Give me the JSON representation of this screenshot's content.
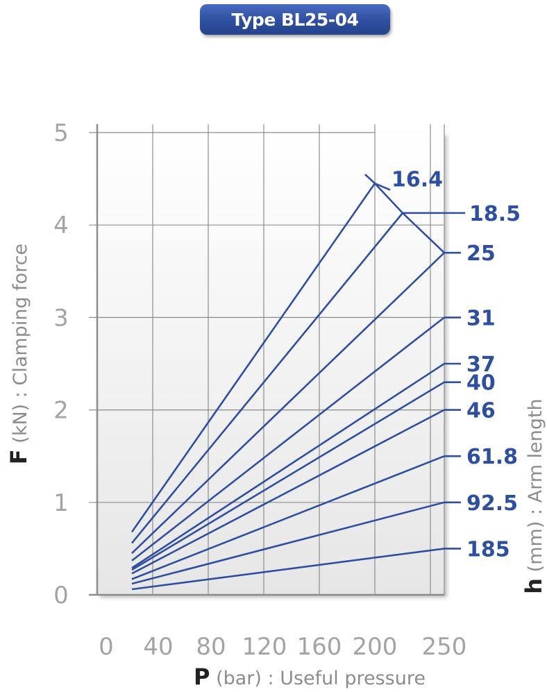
{
  "title": "Type BL25-04",
  "chart_data": {
    "type": "line",
    "xlabel": {
      "symbol": "P",
      "unit": "(bar)",
      "text": ": Useful pressure"
    },
    "ylabel": {
      "symbol": "F",
      "unit": "(kN)",
      "text": ": Clamping force"
    },
    "series_axis_label": {
      "symbol": "h",
      "unit": "(mm)",
      "text": ": Arm length"
    },
    "x_ticks": [
      "0",
      "40",
      "80",
      "120",
      "160",
      "200",
      "250"
    ],
    "y_ticks": [
      "0",
      "1",
      "2",
      "3",
      "4",
      "5"
    ],
    "xlim": [
      0,
      250
    ],
    "ylim": [
      0,
      5
    ],
    "grid": true,
    "colors": {
      "line": "#2e4f9f",
      "grid": "#8c8c8c",
      "tick": "#a3a3a3",
      "title_bg": "#2e4f9f"
    },
    "series": [
      {
        "label": "16.4",
        "x": [
          25,
          200
        ],
        "y": [
          0.68,
          4.45
        ],
        "callout": {
          "from": [
            200,
            4.45
          ],
          "to": [
            211,
            4.38
          ],
          "x": 211,
          "y": 4.5
        }
      },
      {
        "label": "18.5",
        "x": [
          25,
          220
        ],
        "y": [
          0.56,
          4.13
        ],
        "callout": {
          "from": [
            220,
            4.13
          ],
          "to": [
            265,
            4.13
          ],
          "x": 267,
          "y": 4.13
        }
      },
      {
        "label": "25",
        "x": [
          25,
          250
        ],
        "y": [
          0.45,
          3.7
        ]
      },
      {
        "label": "31",
        "x": [
          25,
          250
        ],
        "y": [
          0.37,
          3.0
        ]
      },
      {
        "label": "37",
        "x": [
          25,
          250
        ],
        "y": [
          0.29,
          2.5
        ]
      },
      {
        "label": "40",
        "x": [
          25,
          250
        ],
        "y": [
          0.27,
          2.3
        ]
      },
      {
        "label": "46",
        "x": [
          25,
          250
        ],
        "y": [
          0.23,
          2.0
        ]
      },
      {
        "label": "61.8",
        "x": [
          25,
          250
        ],
        "y": [
          0.17,
          1.5
        ]
      },
      {
        "label": "92.5",
        "x": [
          25,
          250
        ],
        "y": [
          0.12,
          1.0
        ]
      },
      {
        "label": "185",
        "x": [
          25,
          250
        ],
        "y": [
          0.06,
          0.5
        ]
      }
    ],
    "limit_line": {
      "x": [
        200,
        220,
        250
      ],
      "y": [
        4.45,
        4.13,
        3.7
      ]
    }
  }
}
